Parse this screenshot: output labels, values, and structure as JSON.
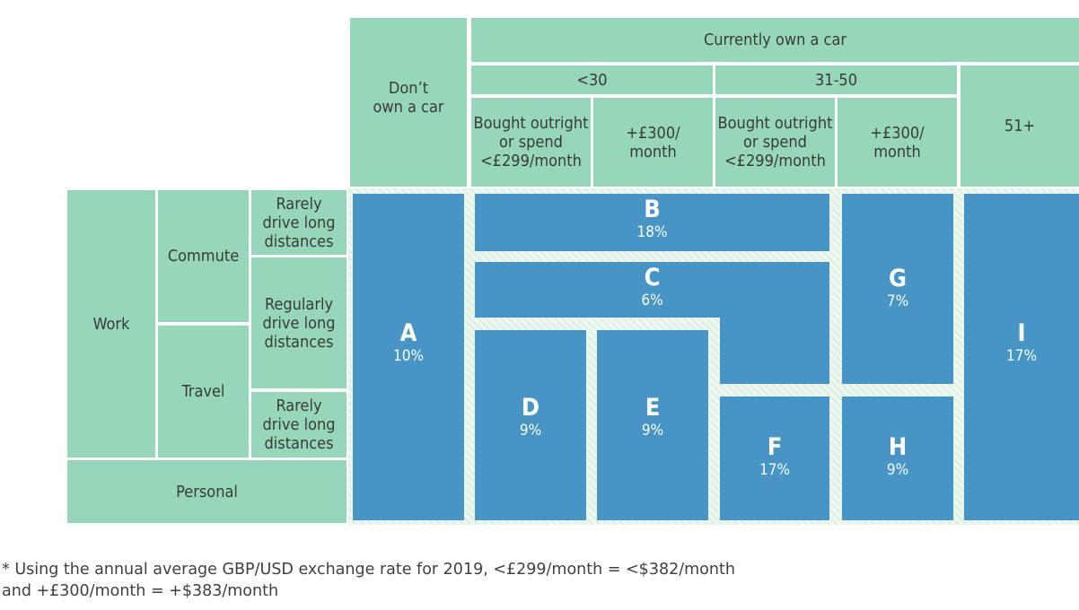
{
  "header": {
    "dont_own": "Don’t\nown a car",
    "currently_own": "Currently own a car",
    "age_under_30": "<30",
    "age_31_50": "31-50",
    "age_51_plus": "51+",
    "bought_outright_1": "Bought outright\nor spend\n<£299/month",
    "spend_300_1": "+£300/\nmonth",
    "bought_outright_2": "Bought outright\nor spend\n<£299/month",
    "spend_300_2": "+£300/\nmonth"
  },
  "rows": {
    "work": "Work",
    "commute": "Commute",
    "travel": "Travel",
    "personal": "Personal",
    "rarely_1": "Rarely\ndrive long\ndistances",
    "regularly": "Regularly\ndrive long\ndistances",
    "rarely_2": "Rarely\ndrive long\ndistances"
  },
  "segments": {
    "A": {
      "letter": "A",
      "pct": "10%"
    },
    "B": {
      "letter": "B",
      "pct": "18%"
    },
    "C": {
      "letter": "C",
      "pct": "6%"
    },
    "D": {
      "letter": "D",
      "pct": "9%"
    },
    "E": {
      "letter": "E",
      "pct": "9%"
    },
    "F": {
      "letter": "F",
      "pct": "17%"
    },
    "G": {
      "letter": "G",
      "pct": "7%"
    },
    "H": {
      "letter": "H",
      "pct": "9%"
    },
    "I": {
      "letter": "I",
      "pct": "17%"
    }
  },
  "colors": {
    "header_green": "#96d6b9",
    "segment_blue": "#4795c6"
  },
  "footnote": "* Using the annual average GBP/USD exchange rate for 2019, <£299/month = <$382/month\nand +£300/month = +$383/month"
}
